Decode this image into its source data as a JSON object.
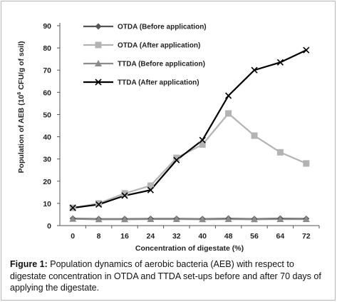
{
  "chart_data": {
    "type": "line",
    "title": "",
    "xlabel": "Concentration of digestate (%)",
    "ylabel_main": "Population of AEB (10",
    "ylabel_sup": "6",
    "ylabel_tail": " CFU/g of soil)",
    "x": [
      0,
      8,
      16,
      24,
      32,
      40,
      48,
      56,
      64,
      72
    ],
    "ylim": [
      0,
      90
    ],
    "yticks": [
      0,
      10,
      20,
      30,
      40,
      50,
      60,
      70,
      80,
      90
    ],
    "grid": false,
    "legend_position": "top-left",
    "series": [
      {
        "name": "OTDA (Before application)",
        "color": "#555555",
        "marker": "diamond",
        "values": [
          3.2,
          3.0,
          3.0,
          3.1,
          3.1,
          3.0,
          3.2,
          3.0,
          3.2,
          3.1
        ]
      },
      {
        "name": "OTDA (After application)",
        "color": "#b3b3b3",
        "marker": "square",
        "values": [
          8.0,
          10.0,
          14.5,
          18.0,
          30.5,
          36.5,
          50.5,
          40.5,
          33.0,
          28.0
        ]
      },
      {
        "name": "TTDA (Before application)",
        "color": "#8c8c8c",
        "marker": "triangle",
        "values": [
          3.0,
          2.8,
          2.8,
          2.9,
          2.9,
          2.8,
          2.9,
          2.8,
          2.9,
          2.9
        ]
      },
      {
        "name": "TTDA (After application)",
        "color": "#000000",
        "marker": "x",
        "values": [
          8.0,
          9.5,
          13.5,
          16.0,
          29.5,
          38.5,
          58.5,
          70.0,
          73.5,
          79.0
        ]
      }
    ]
  },
  "caption": {
    "label": "Figure 1:",
    "text": " Population dynamics of aerobic bacteria (AEB) with respect to digestate concentration in OTDA and TTDA set-ups before and after 70 days of applying the digestate."
  }
}
